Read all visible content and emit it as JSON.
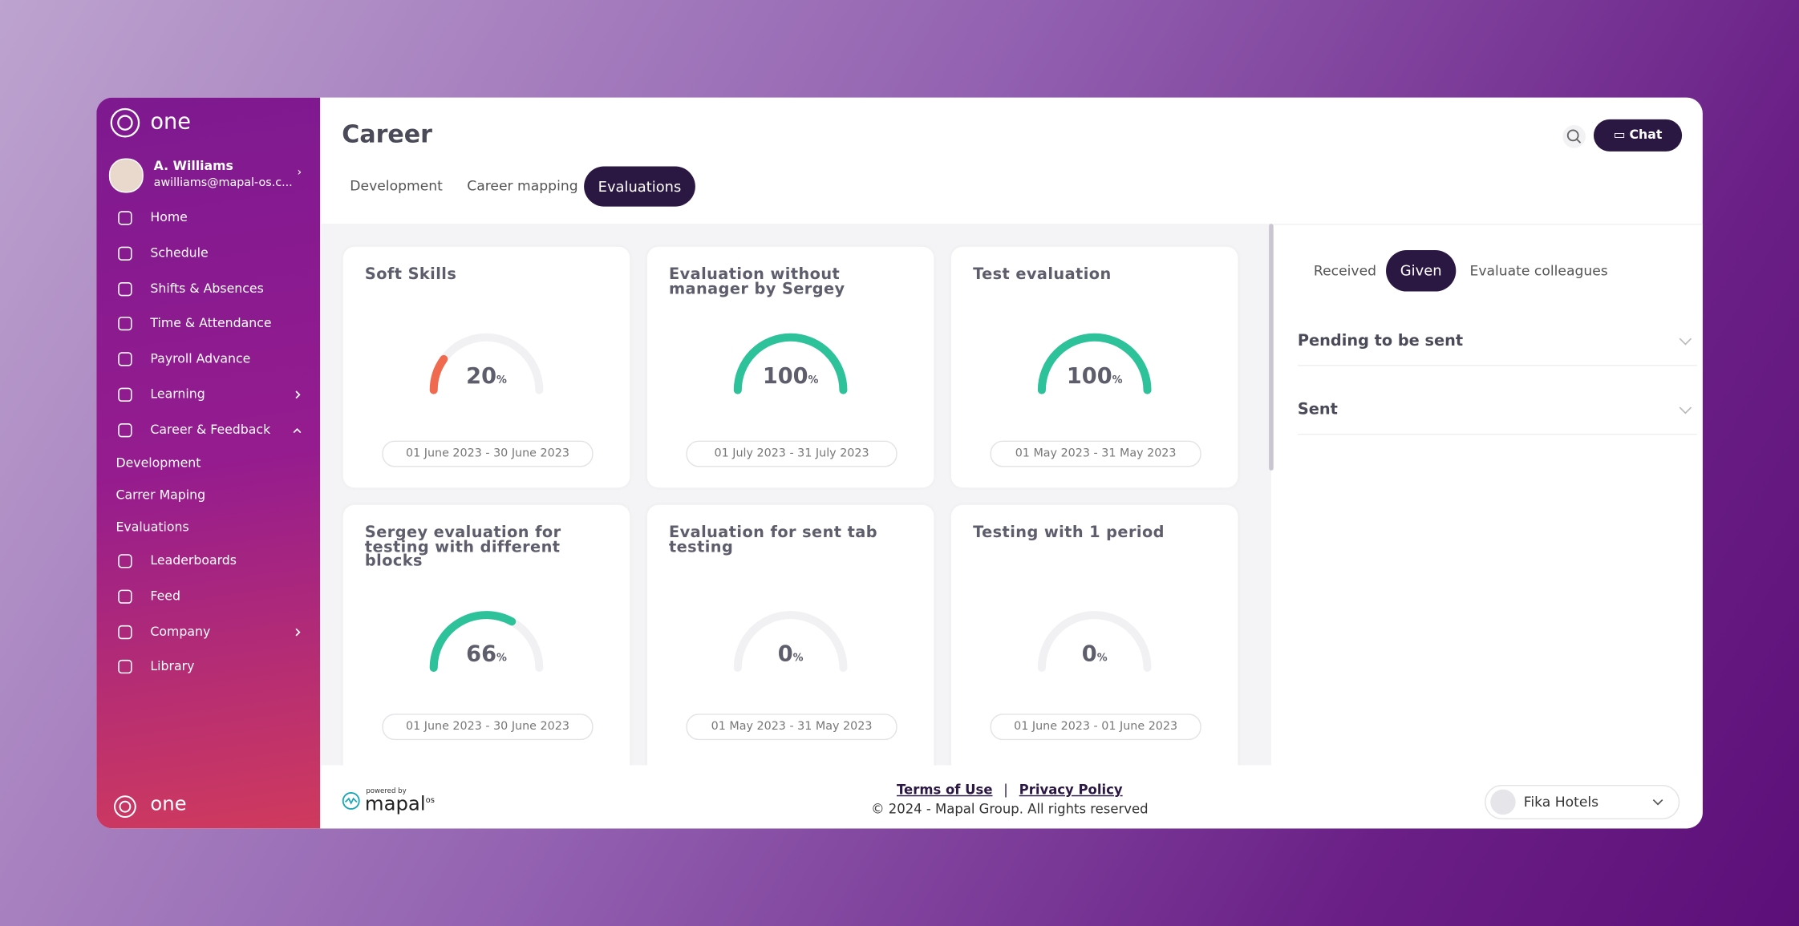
{
  "brand": "one",
  "user": {
    "name": "A. Williams",
    "email": "awilliams@mapal-os.c..."
  },
  "nav_top": [
    {
      "label": "Home"
    },
    {
      "label": "Schedule"
    },
    {
      "label": "Shifts & Absences"
    },
    {
      "label": "Time & Attendance"
    },
    {
      "label": "Payroll Advance"
    },
    {
      "label": "Learning",
      "arrow": "right"
    },
    {
      "label": "Career & Feedback",
      "arrow": "up"
    }
  ],
  "nav_sub": [
    "Development",
    "Carrer Maping",
    "Evaluations"
  ],
  "nav_bottom": [
    {
      "label": "Leaderboards"
    },
    {
      "label": "Feed"
    },
    {
      "label": "Company",
      "arrow": "right"
    },
    {
      "label": "Library"
    }
  ],
  "header": {
    "title": "Career",
    "tabs": [
      "Development",
      "Career mapping",
      "Evaluations"
    ],
    "active_tab": 2,
    "chat": "Chat"
  },
  "cards": [
    {
      "title": "Soft Skills",
      "percent": 20,
      "unit": "%",
      "period": "01 June 2023 - 30 June 2023",
      "color": "#ef6a4e"
    },
    {
      "title": "Evaluation without manager by Sergey",
      "percent": 100,
      "unit": "%",
      "period": "01 July 2023 - 31 July 2023",
      "color": "#2ec29a"
    },
    {
      "title": "Test evaluation",
      "percent": 100,
      "unit": "%",
      "period": "01 May 2023 - 31 May 2023",
      "color": "#2ec29a"
    },
    {
      "title": "Sergey evaluation for testing with different blocks",
      "percent": 66,
      "unit": "%",
      "period": "01 June 2023 - 30 June 2023",
      "color": "#2ec29a"
    },
    {
      "title": "Evaluation for sent tab testing",
      "percent": 0,
      "unit": "%",
      "period": "01 May 2023 - 31 May 2023",
      "color": "#2ec29a"
    },
    {
      "title": "Testing with 1 period",
      "percent": 0,
      "unit": "%",
      "period": "01 June 2023 - 01 June 2023",
      "color": "#2ec29a"
    }
  ],
  "panel": {
    "tabs": [
      "Received",
      "Given",
      "Evaluate colleagues"
    ],
    "active_tab": 1,
    "sections": [
      "Pending to be sent",
      "Sent"
    ]
  },
  "footer": {
    "powered_by": "powered by",
    "brand": "mapal",
    "brand_suffix": "os",
    "terms": "Terms of Use",
    "separator": "|",
    "privacy": "Privacy Policy",
    "copyright": "© 2024 - Mapal Group. All rights reserved",
    "company": "Fika Hotels"
  }
}
